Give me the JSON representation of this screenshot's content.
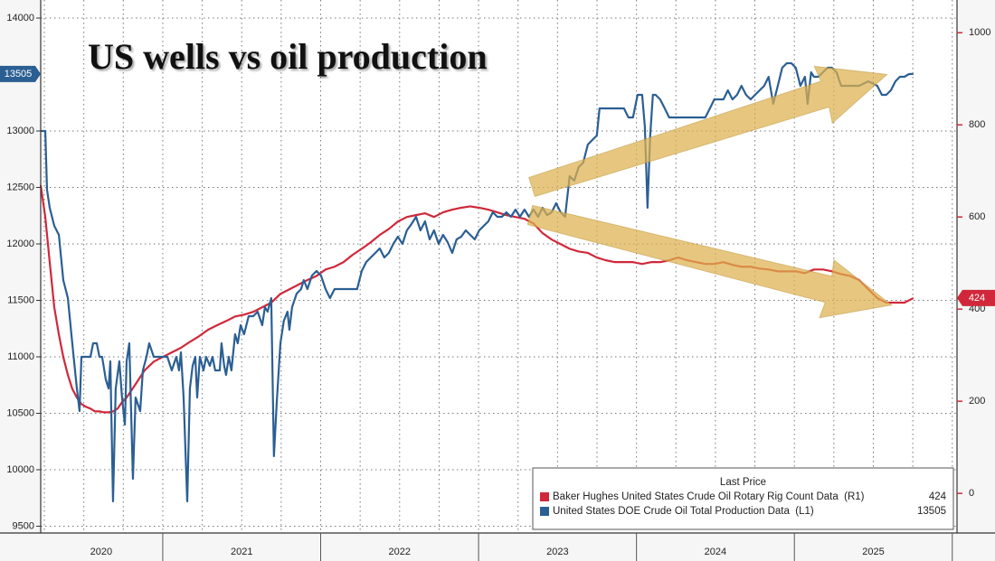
{
  "chart_data": {
    "type": "line",
    "title": "US wells vs oil production",
    "legend_title": "Last Price",
    "legend": "lower right",
    "grid": true,
    "xlim": [
      2020.227,
      2026.03
    ],
    "xticks": [
      {
        "value": 2020.61,
        "label": "2020"
      },
      {
        "value": 2021.5,
        "label": "2021"
      },
      {
        "value": 2022.5,
        "label": "2022"
      },
      {
        "value": 2023.5,
        "label": "2023"
      },
      {
        "value": 2024.5,
        "label": "2024"
      },
      {
        "value": 2025.5,
        "label": "2025"
      }
    ],
    "ylim": [
      9440,
      14160
    ],
    "yticks": [
      9500,
      10000,
      10500,
      11000,
      11500,
      12000,
      12500,
      13000,
      14000
    ],
    "y2lim": [
      -86,
      1071
    ],
    "y2ticks": [
      0,
      200,
      400,
      600,
      800,
      1000
    ],
    "series": [
      {
        "name": "Baker Hughes United States Crude Oil Rotary Rig Count Data  (R1)",
        "color": "#d0283a",
        "axis": "y2",
        "last_price": 424,
        "x": [
          2020.227,
          2020.256,
          2020.284,
          2020.313,
          2020.342,
          2020.37,
          2020.399,
          2020.427,
          2020.456,
          2020.485,
          2020.513,
          2020.542,
          2020.571,
          2020.599,
          2020.628,
          2020.657,
          2020.685,
          2020.714,
          2020.742,
          2020.771,
          2020.828,
          2020.885,
          2020.943,
          2021.0,
          2021.057,
          2021.115,
          2021.172,
          2021.229,
          2021.286,
          2021.344,
          2021.401,
          2021.458,
          2021.515,
          2021.573,
          2021.63,
          2021.687,
          2021.745,
          2021.802,
          2021.859,
          2021.916,
          2021.974,
          2022.031,
          2022.088,
          2022.145,
          2022.203,
          2022.26,
          2022.317,
          2022.374,
          2022.432,
          2022.489,
          2022.546,
          2022.604,
          2022.661,
          2022.718,
          2022.775,
          2022.833,
          2022.89,
          2022.947,
          2023.004,
          2023.062,
          2023.119,
          2023.176,
          2023.234,
          2023.291,
          2023.348,
          2023.405,
          2023.463,
          2023.52,
          2023.577,
          2023.634,
          2023.692,
          2023.749,
          2023.806,
          2023.864,
          2023.921,
          2023.978,
          2024.036,
          2024.093,
          2024.15,
          2024.207,
          2024.264,
          2024.322,
          2024.379,
          2024.436,
          2024.493,
          2024.551,
          2024.608,
          2024.665,
          2024.723,
          2024.78,
          2024.837,
          2024.895,
          2024.952,
          2025.009,
          2025.067,
          2025.124,
          2025.181,
          2025.238,
          2025.296,
          2025.353,
          2025.41,
          2025.468,
          2025.525,
          2025.582,
          2025.64,
          2025.697,
          2025.754
        ],
        "values": [
          669,
          600,
          502,
          404,
          345,
          296,
          257,
          227,
          208,
          194,
          188,
          184,
          178,
          178,
          176,
          176,
          178,
          184,
          198,
          208,
          237,
          267,
          286,
          296,
          306,
          316,
          329,
          341,
          355,
          365,
          374,
          384,
          388,
          394,
          404,
          414,
          433,
          443,
          453,
          463,
          472,
          486,
          492,
          502,
          518,
          531,
          545,
          561,
          574,
          590,
          600,
          604,
          608,
          600,
          610,
          616,
          620,
          623,
          620,
          616,
          610,
          604,
          600,
          596,
          586,
          565,
          551,
          541,
          531,
          525,
          522,
          512,
          506,
          502,
          502,
          502,
          498,
          502,
          502,
          506,
          512,
          506,
          502,
          498,
          498,
          502,
          496,
          492,
          492,
          488,
          486,
          482,
          482,
          482,
          478,
          486,
          486,
          482,
          476,
          472,
          463,
          443,
          424,
          414,
          414,
          414,
          424
        ]
      },
      {
        "name": "United States DOE Crude Oil Total Production Data  (L1)",
        "color": "#2b5f93",
        "axis": "y",
        "last_price": 13505,
        "x": [
          2020.227,
          2020.256,
          2020.267,
          2020.284,
          2020.313,
          2020.342,
          2020.37,
          2020.399,
          2020.427,
          2020.456,
          2020.473,
          2020.485,
          2020.513,
          2020.542,
          2020.559,
          2020.582,
          2020.599,
          2020.616,
          2020.639,
          2020.657,
          2020.668,
          2020.685,
          2020.702,
          2020.725,
          2020.742,
          2020.76,
          2020.771,
          2020.788,
          2020.811,
          2020.828,
          2020.857,
          2020.874,
          2020.897,
          2020.914,
          2020.943,
          2020.972,
          2021.0,
          2021.029,
          2021.057,
          2021.086,
          2021.103,
          2021.115,
          2021.132,
          2021.155,
          2021.172,
          2021.189,
          2021.206,
          2021.218,
          2021.235,
          2021.258,
          2021.275,
          2021.298,
          2021.315,
          2021.332,
          2021.361,
          2021.372,
          2021.389,
          2021.401,
          2021.418,
          2021.435,
          2021.458,
          2021.475,
          2021.493,
          2021.515,
          2021.544,
          2021.573,
          2021.601,
          2021.63,
          2021.647,
          2021.664,
          2021.687,
          2021.704,
          2021.722,
          2021.745,
          2021.767,
          2021.79,
          2021.802,
          2021.819,
          2021.848,
          2021.876,
          2021.893,
          2021.916,
          2021.945,
          2021.974,
          2022.002,
          2022.031,
          2022.059,
          2022.088,
          2022.117,
          2022.145,
          2022.203,
          2022.231,
          2022.26,
          2022.289,
          2022.317,
          2022.346,
          2022.374,
          2022.403,
          2022.432,
          2022.46,
          2022.489,
          2022.518,
          2022.546,
          2022.575,
          2022.604,
          2022.632,
          2022.661,
          2022.69,
          2022.718,
          2022.747,
          2022.775,
          2022.804,
          2022.833,
          2022.861,
          2022.89,
          2022.919,
          2022.947,
          2022.976,
          2023.004,
          2023.033,
          2023.062,
          2023.09,
          2023.119,
          2023.148,
          2023.176,
          2023.205,
          2023.234,
          2023.262,
          2023.291,
          2023.319,
          2023.348,
          2023.377,
          2023.405,
          2023.434,
          2023.463,
          2023.491,
          2023.52,
          2023.548,
          2023.577,
          2023.606,
          2023.634,
          2023.663,
          2023.692,
          2023.72,
          2023.749,
          2023.766,
          2023.806,
          2023.864,
          2023.921,
          2023.949,
          2023.978,
          2024.007,
          2024.036,
          2024.053,
          2024.07,
          2024.087,
          2024.104,
          2024.121,
          2024.15,
          2024.179,
          2024.207,
          2024.236,
          2024.264,
          2024.322,
          2024.379,
          2024.436,
          2024.465,
          2024.493,
          2024.551,
          2024.579,
          2024.608,
          2024.637,
          2024.665,
          2024.694,
          2024.723,
          2024.751,
          2024.78,
          2024.809,
          2024.837,
          2024.866,
          2024.895,
          2024.923,
          2024.952,
          2024.981,
          2025.009,
          2025.038,
          2025.067,
          2025.084,
          2025.106,
          2025.124,
          2025.152,
          2025.181,
          2025.21,
          2025.238,
          2025.267,
          2025.296,
          2025.353,
          2025.41,
          2025.468,
          2025.525,
          2025.554,
          2025.582,
          2025.611,
          2025.64,
          2025.668,
          2025.697,
          2025.726,
          2025.754
        ],
        "values": [
          13000,
          13000,
          12480,
          12320,
          12160,
          12080,
          11680,
          11520,
          11120,
          10720,
          10520,
          11000,
          11000,
          11000,
          11120,
          11120,
          11000,
          11000,
          10800,
          10720,
          10960,
          9720,
          10720,
          10960,
          10640,
          10400,
          10960,
          11120,
          9920,
          10640,
          10520,
          10880,
          11000,
          11120,
          11000,
          11000,
          11000,
          11000,
          10880,
          11000,
          10880,
          11040,
          10640,
          9720,
          10720,
          10920,
          11000,
          10640,
          11000,
          10880,
          11000,
          10920,
          11000,
          10880,
          10880,
          11120,
          10920,
          10840,
          11000,
          10880,
          11200,
          11120,
          11280,
          11200,
          11360,
          11360,
          11400,
          11280,
          11440,
          11400,
          11520,
          10120,
          10600,
          11120,
          11320,
          11400,
          11240,
          11440,
          11560,
          11600,
          11680,
          11600,
          11720,
          11760,
          11720,
          11600,
          11520,
          11600,
          11600,
          11600,
          11600,
          11600,
          11760,
          11840,
          11880,
          11920,
          11960,
          11880,
          11920,
          12000,
          12064,
          12000,
          12120,
          12176,
          12240,
          12120,
          12200,
          12040,
          12120,
          12000,
          12080,
          12016,
          11920,
          12040,
          12064,
          12120,
          12080,
          12040,
          12120,
          12160,
          12200,
          12280,
          12240,
          12240,
          12280,
          12240,
          12304,
          12240,
          12304,
          12240,
          12304,
          12240,
          12320,
          12256,
          12280,
          12360,
          12280,
          12240,
          12600,
          12560,
          12680,
          12720,
          12880,
          12920,
          12960,
          13200,
          13200,
          13200,
          13200,
          13120,
          13120,
          13320,
          13320,
          13040,
          12320,
          12960,
          13320,
          13320,
          13280,
          13200,
          13120,
          13120,
          13120,
          13120,
          13120,
          13120,
          13200,
          13280,
          13280,
          13360,
          13280,
          13320,
          13400,
          13320,
          13280,
          13320,
          13360,
          13400,
          13480,
          13240,
          13400,
          13560,
          13600,
          13600,
          13560,
          13400,
          13480,
          13240,
          13520,
          13480,
          13480,
          13520,
          13560,
          13560,
          13520,
          13400,
          13400,
          13400,
          13440,
          13400,
          13320,
          13320,
          13360,
          13440,
          13480,
          13480,
          13504,
          13505
        ]
      }
    ]
  }
}
